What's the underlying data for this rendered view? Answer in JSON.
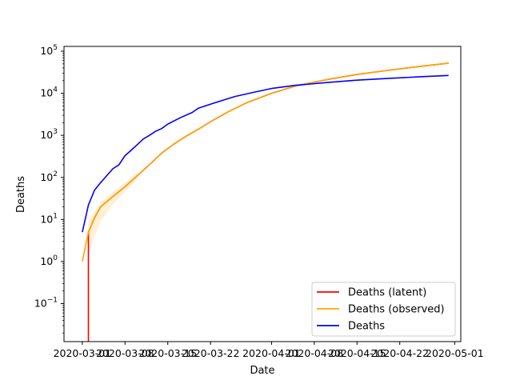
{
  "chart_data": {
    "type": "line",
    "title": "",
    "xlabel": "Date",
    "ylabel": "Deaths",
    "yscale": "log",
    "ylim": [
      0.0125,
      130000
    ],
    "xlim": [
      "2020-02-27",
      "2020-05-02"
    ],
    "grid": false,
    "legend_position": "lower-right",
    "x_ticks": [
      "2020-03-01",
      "2020-03-08",
      "2020-03-15",
      "2020-03-22",
      "2020-04-01",
      "2020-04-08",
      "2020-04-15",
      "2020-04-22",
      "2020-05-01"
    ],
    "y_ticks": [
      {
        "value": 0.1,
        "base": "10",
        "exp": "−1"
      },
      {
        "value": 1,
        "base": "10",
        "exp": "0"
      },
      {
        "value": 10,
        "base": "10",
        "exp": "1"
      },
      {
        "value": 100,
        "base": "10",
        "exp": "2"
      },
      {
        "value": 1000,
        "base": "10",
        "exp": "3"
      },
      {
        "value": 10000,
        "base": "10",
        "exp": "4"
      },
      {
        "value": 100000,
        "base": "10",
        "exp": "5"
      }
    ],
    "series": [
      {
        "name": "Deaths (latent)",
        "color": "#ff0000",
        "points": [
          [
            "2020-03-02",
            0.0001
          ],
          [
            "2020-03-02",
            5
          ],
          [
            "2020-03-03",
            11
          ],
          [
            "2020-03-04",
            20
          ],
          [
            "2020-03-06",
            35
          ],
          [
            "2020-03-08",
            60
          ],
          [
            "2020-03-10",
            110
          ],
          [
            "2020-03-12",
            200
          ],
          [
            "2020-03-14",
            380
          ],
          [
            "2020-03-16",
            620
          ],
          [
            "2020-03-18",
            950
          ],
          [
            "2020-03-20",
            1400
          ],
          [
            "2020-03-22",
            2100
          ],
          [
            "2020-03-25",
            3700
          ],
          [
            "2020-03-28",
            6000
          ],
          [
            "2020-04-01",
            10000
          ],
          [
            "2020-04-05",
            15000
          ],
          [
            "2020-04-10",
            21000
          ],
          [
            "2020-04-15",
            28000
          ],
          [
            "2020-04-20",
            35000
          ],
          [
            "2020-04-25",
            43000
          ],
          [
            "2020-04-30",
            52000
          ]
        ]
      },
      {
        "name": "Deaths (observed)",
        "color": "#ffa500",
        "band_color": "#ffe9c4",
        "points": [
          [
            "2020-03-01",
            1
          ],
          [
            "2020-03-02",
            5
          ],
          [
            "2020-03-03",
            11
          ],
          [
            "2020-03-04",
            20
          ],
          [
            "2020-03-06",
            35
          ],
          [
            "2020-03-08",
            60
          ],
          [
            "2020-03-10",
            110
          ],
          [
            "2020-03-12",
            200
          ],
          [
            "2020-03-14",
            380
          ],
          [
            "2020-03-16",
            620
          ],
          [
            "2020-03-18",
            950
          ],
          [
            "2020-03-20",
            1400
          ],
          [
            "2020-03-22",
            2100
          ],
          [
            "2020-03-25",
            3700
          ],
          [
            "2020-03-28",
            6000
          ],
          [
            "2020-04-01",
            10000
          ],
          [
            "2020-04-05",
            15000
          ],
          [
            "2020-04-10",
            21000
          ],
          [
            "2020-04-15",
            28000
          ],
          [
            "2020-04-20",
            35000
          ],
          [
            "2020-04-25",
            43000
          ],
          [
            "2020-04-30",
            52000
          ]
        ],
        "band": [
          [
            "2020-03-02",
            1.3,
            9
          ],
          [
            "2020-03-03",
            4,
            15
          ],
          [
            "2020-03-04",
            9,
            26
          ],
          [
            "2020-03-06",
            22,
            45
          ],
          [
            "2020-03-08",
            45,
            75
          ],
          [
            "2020-03-10",
            90,
            130
          ]
        ]
      },
      {
        "name": "Deaths",
        "color": "#0000ff",
        "points": [
          [
            "2020-03-01",
            5
          ],
          [
            "2020-03-02",
            22
          ],
          [
            "2020-03-03",
            50
          ],
          [
            "2020-03-04",
            75
          ],
          [
            "2020-03-05",
            110
          ],
          [
            "2020-03-06",
            160
          ],
          [
            "2020-03-07",
            200
          ],
          [
            "2020-03-08",
            330
          ],
          [
            "2020-03-09",
            440
          ],
          [
            "2020-03-10",
            600
          ],
          [
            "2020-03-11",
            820
          ],
          [
            "2020-03-12",
            1000
          ],
          [
            "2020-03-13",
            1250
          ],
          [
            "2020-03-14",
            1450
          ],
          [
            "2020-03-15",
            1850
          ],
          [
            "2020-03-17",
            2600
          ],
          [
            "2020-03-19",
            3500
          ],
          [
            "2020-03-20",
            4400
          ],
          [
            "2020-03-22",
            5500
          ],
          [
            "2020-03-24",
            6800
          ],
          [
            "2020-03-26",
            8400
          ],
          [
            "2020-03-29",
            10500
          ],
          [
            "2020-04-01",
            13000
          ],
          [
            "2020-04-05",
            15500
          ],
          [
            "2020-04-10",
            18000
          ],
          [
            "2020-04-15",
            20500
          ],
          [
            "2020-04-20",
            22500
          ],
          [
            "2020-04-25",
            24500
          ],
          [
            "2020-04-30",
            26500
          ]
        ]
      }
    ]
  }
}
